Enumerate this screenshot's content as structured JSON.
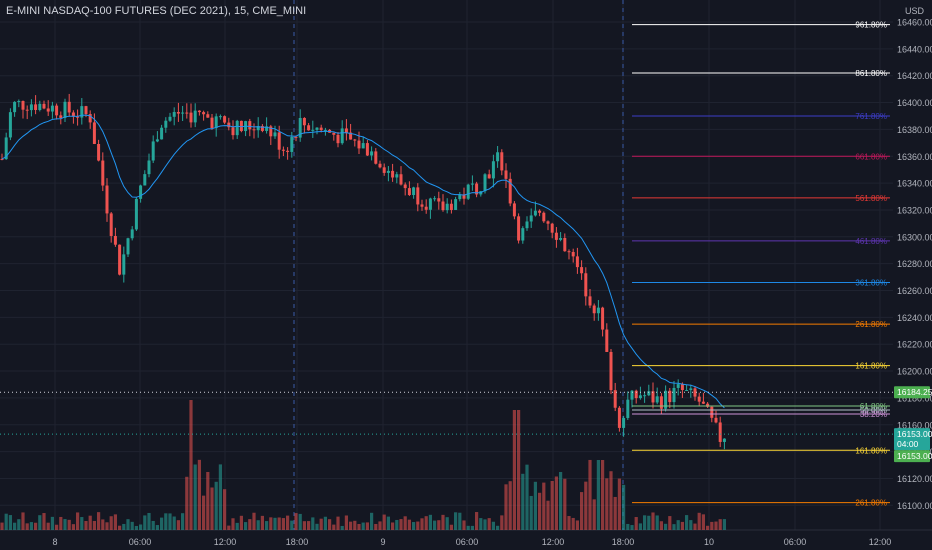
{
  "header": {
    "title": "E-MINI NASDAQ-100 FUTURES (DEC 2021), 15, CME_MINI",
    "currency": "USD"
  },
  "colors": {
    "background": "#141722",
    "grid": "#1f2330",
    "bull": "#26a69a",
    "bear": "#ef5350",
    "ema": "#2196f3",
    "axis_text": "#b2b5be"
  },
  "y_axis": {
    "ticks": [
      "16460.00",
      "16440.00",
      "16420.00",
      "16400.00",
      "16380.00",
      "16360.00",
      "16340.00",
      "16320.00",
      "16300.00",
      "16280.00",
      "16260.00",
      "16240.00",
      "16220.00",
      "16200.00",
      "16180.00",
      "16160.00",
      "16140.00",
      "16120.00",
      "16100.00"
    ]
  },
  "x_axis": {
    "ticks": [
      "8",
      "06:00",
      "12:00",
      "18:00",
      "9",
      "06:00",
      "12:00",
      "18:00",
      "10",
      "06:00",
      "12:00"
    ]
  },
  "price_labels": {
    "top_level": "16184.25",
    "current_price": "16153.00",
    "countdown": "04:00",
    "lower": "16153.00"
  },
  "fib_levels": [
    {
      "label": "961.80%",
      "color": "#ffffff",
      "value": 16458
    },
    {
      "label": "861.80%",
      "color": "#ffffff",
      "value": 16422
    },
    {
      "label": "761.80%",
      "color": "#3d3dc8",
      "value": 16390
    },
    {
      "label": "661.80%",
      "color": "#c2185b",
      "value": 16360
    },
    {
      "label": "561.80%",
      "color": "#e53935",
      "value": 16329
    },
    {
      "label": "461.80%",
      "color": "#5e35b1",
      "value": 16297
    },
    {
      "label": "361.80%",
      "color": "#1e88e5",
      "value": 16266
    },
    {
      "label": "261.80%",
      "color": "#f57c00",
      "value": 16235
    },
    {
      "label": "161.80%",
      "color": "#fdd835",
      "value": 16204
    },
    {
      "label": "61.80%",
      "color": "#81c784",
      "value": 16174
    },
    {
      "label": "50.00%",
      "color": "#b0bec5",
      "value": 16171
    },
    {
      "label": "38.20%",
      "color": "#ce93d8",
      "value": 16168
    },
    {
      "label": "161.80%",
      "color": "#fdd835",
      "value": 16141
    },
    {
      "label": "261.80%",
      "color": "#f57c00",
      "value": 16102
    }
  ]
}
